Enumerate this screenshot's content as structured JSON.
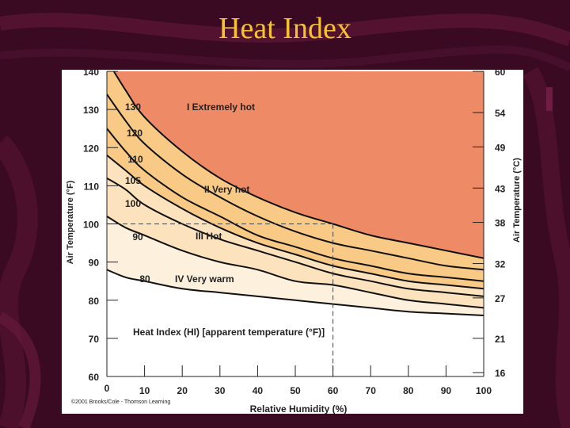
{
  "slide": {
    "title": "Heat Index",
    "credit": "©2001 Brooks/Cole - Thomson Learning"
  },
  "colors": {
    "background": "#3a0a22",
    "title": "#f4c430",
    "zone1": "#ee8a66",
    "zone2": "#f9ca86",
    "zone3": "#fce3bd",
    "zone4": "#fdf1de",
    "curve": "#111111"
  },
  "chart_data": {
    "type": "line",
    "title": "Heat Index (HI) [apparent temperature (°F)]",
    "xlabel": "Relative Humidity (%)",
    "ylabel": "Air Temperature (°F)",
    "ylabel_right": "Air Temperature (°C)",
    "xlim": [
      0,
      100
    ],
    "ylim": [
      60,
      140
    ],
    "x_ticks": [
      0,
      10,
      20,
      30,
      40,
      50,
      60,
      70,
      80,
      90,
      100
    ],
    "y_ticks": [
      60,
      70,
      80,
      90,
      100,
      110,
      120,
      130,
      140
    ],
    "right_ticks": [
      {
        "label": "16",
        "f": 61
      },
      {
        "label": "21",
        "f": 70
      },
      {
        "label": "27",
        "f": 80.6
      },
      {
        "label": "32",
        "f": 89.6
      },
      {
        "label": "38",
        "f": 100.4
      },
      {
        "label": "43",
        "f": 109.4
      },
      {
        "label": "49",
        "f": 120.2
      },
      {
        "label": "54",
        "f": 129.2
      },
      {
        "label": "60",
        "f": 140
      }
    ],
    "series": [
      {
        "name": "130",
        "x": [
          0,
          5,
          10,
          20,
          30,
          40,
          50,
          60,
          70,
          80,
          90,
          100
        ],
        "y": [
          143,
          135,
          128,
          119,
          112,
          107,
          103,
          100,
          97,
          95,
          93,
          91
        ]
      },
      {
        "name": "120",
        "x": [
          0,
          5,
          10,
          20,
          30,
          40,
          50,
          60,
          70,
          80,
          90,
          100
        ],
        "y": [
          134,
          127,
          121,
          113,
          107,
          102,
          98,
          95,
          93,
          91,
          89,
          88
        ]
      },
      {
        "name": "110",
        "x": [
          0,
          5,
          10,
          20,
          30,
          40,
          50,
          60,
          70,
          80,
          90,
          100
        ],
        "y": [
          125,
          119,
          114,
          107,
          102,
          97,
          94,
          91,
          89,
          87,
          86,
          85
        ]
      },
      {
        "name": "105",
        "x": [
          0,
          5,
          10,
          20,
          30,
          40,
          50,
          60,
          70,
          80,
          90,
          100
        ],
        "y": [
          118,
          114,
          110,
          104,
          99,
          95,
          92,
          89,
          87,
          85,
          84,
          83
        ]
      },
      {
        "name": "100",
        "x": [
          0,
          5,
          10,
          20,
          30,
          40,
          50,
          60,
          70,
          80,
          90,
          100
        ],
        "y": [
          112,
          109,
          105,
          100,
          96,
          93,
          90,
          87,
          85,
          83,
          82,
          81
        ]
      },
      {
        "name": "90",
        "x": [
          0,
          5,
          10,
          20,
          30,
          40,
          50,
          60,
          70,
          80,
          90,
          100
        ],
        "y": [
          102,
          99,
          97,
          93,
          90,
          88,
          85,
          84,
          82,
          80,
          79,
          78
        ]
      },
      {
        "name": "80",
        "x": [
          0,
          5,
          10,
          20,
          30,
          40,
          50,
          60,
          70,
          80,
          90,
          100
        ],
        "y": [
          88,
          86,
          85,
          83,
          82,
          81,
          80,
          79,
          78,
          77,
          76.5,
          76
        ]
      }
    ],
    "zones": [
      {
        "id": "I",
        "label": "Extremely hot",
        "hi": "130"
      },
      {
        "id": "II",
        "label": "Very hot",
        "hi": "105"
      },
      {
        "id": "III",
        "label": "Hot",
        "hi": "90"
      },
      {
        "id": "IV",
        "label": "Very warm",
        "hi": "80"
      }
    ],
    "reference_point": {
      "x": 60,
      "y": 100
    }
  }
}
